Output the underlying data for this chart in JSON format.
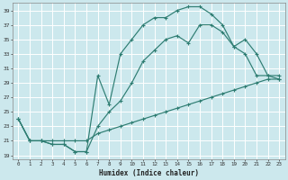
{
  "xlabel": "Humidex (Indice chaleur)",
  "bg_color": "#cce8ed",
  "grid_color": "#ffffff",
  "line_color": "#2e7d72",
  "xlim": [
    -0.5,
    23.5
  ],
  "ylim": [
    18.5,
    40
  ],
  "xticks": [
    0,
    1,
    2,
    3,
    4,
    5,
    6,
    7,
    8,
    9,
    10,
    11,
    12,
    13,
    14,
    15,
    16,
    17,
    18,
    19,
    20,
    21,
    22,
    23
  ],
  "yticks": [
    19,
    21,
    23,
    25,
    27,
    29,
    31,
    33,
    35,
    37,
    39
  ],
  "curve_top_x": [
    0,
    1,
    2,
    3,
    4,
    5,
    6,
    7,
    8,
    9,
    10,
    11,
    12,
    13,
    14,
    15,
    16,
    17,
    18,
    19,
    20,
    21,
    22,
    23
  ],
  "curve_top_y": [
    24,
    21,
    21,
    20.5,
    20.5,
    19.5,
    19.5,
    30,
    26,
    33,
    35,
    37,
    38,
    38,
    39,
    39.5,
    39.5,
    38.5,
    37,
    34,
    33,
    30,
    30,
    29.5
  ],
  "curve_mid_x": [
    0,
    1,
    2,
    3,
    4,
    5,
    6,
    7,
    8,
    9,
    10,
    11,
    12,
    13,
    14,
    15,
    16,
    17,
    18,
    19,
    20,
    21,
    22,
    23
  ],
  "curve_mid_y": [
    24,
    21,
    21,
    20.5,
    20.5,
    19.5,
    19.5,
    23,
    25,
    26.5,
    29,
    32,
    33.5,
    35,
    35.5,
    34.5,
    37,
    37,
    36,
    34,
    35,
    33,
    30,
    30
  ],
  "curve_bot_x": [
    0,
    1,
    2,
    3,
    4,
    5,
    6,
    7,
    8,
    9,
    10,
    11,
    12,
    13,
    14,
    15,
    16,
    17,
    18,
    19,
    20,
    21,
    22,
    23
  ],
  "curve_bot_y": [
    24,
    21,
    21,
    21,
    21,
    21,
    21,
    22,
    22.5,
    23,
    23.5,
    24,
    24.5,
    25,
    25.5,
    26,
    26.5,
    27,
    27.5,
    28,
    28.5,
    29,
    29.5,
    29.5
  ]
}
